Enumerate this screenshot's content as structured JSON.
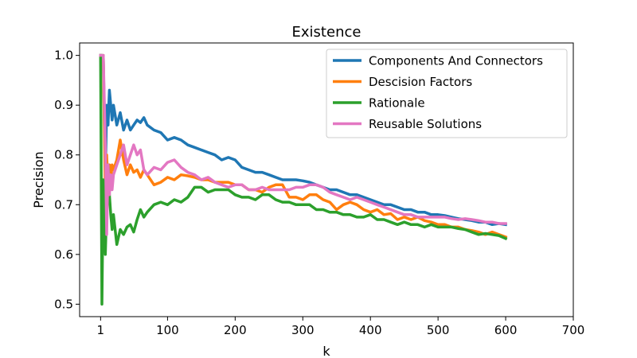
{
  "chart_data": {
    "type": "line",
    "title": "Existence",
    "xlabel": "k",
    "ylabel": "Precision",
    "xlim": [
      -30,
      700
    ],
    "ylim": [
      0.475,
      1.025
    ],
    "xticks": [
      1,
      100,
      200,
      300,
      400,
      500,
      600,
      700
    ],
    "xtick_labels": [
      "1",
      "100",
      "200",
      "300",
      "400",
      "500",
      "600",
      "700"
    ],
    "yticks": [
      0.5,
      0.6,
      0.7,
      0.8,
      0.9,
      1.0
    ],
    "ytick_labels": [
      "0.5",
      "0.6",
      "0.7",
      "0.8",
      "0.9",
      "1.0"
    ],
    "grid": false,
    "legend_position": "top-right",
    "series": [
      {
        "name": "Components And Connectors",
        "color": "#1f77b4",
        "x": [
          1,
          3,
          5,
          8,
          10,
          12,
          14,
          16,
          18,
          20,
          25,
          30,
          35,
          40,
          45,
          50,
          55,
          60,
          65,
          70,
          80,
          90,
          100,
          110,
          120,
          130,
          140,
          150,
          160,
          170,
          180,
          190,
          200,
          210,
          220,
          230,
          240,
          250,
          260,
          270,
          280,
          290,
          300,
          310,
          320,
          330,
          340,
          350,
          360,
          370,
          380,
          390,
          400,
          410,
          420,
          430,
          440,
          450,
          460,
          470,
          480,
          490,
          500,
          510,
          520,
          530,
          540,
          550,
          560,
          570,
          580,
          590,
          600
        ],
        "y": [
          1.0,
          1.0,
          1.0,
          0.76,
          0.9,
          0.86,
          0.93,
          0.9,
          0.87,
          0.9,
          0.86,
          0.885,
          0.85,
          0.87,
          0.85,
          0.86,
          0.87,
          0.865,
          0.875,
          0.86,
          0.85,
          0.845,
          0.83,
          0.835,
          0.83,
          0.82,
          0.815,
          0.81,
          0.805,
          0.8,
          0.79,
          0.795,
          0.79,
          0.775,
          0.77,
          0.765,
          0.765,
          0.76,
          0.755,
          0.75,
          0.75,
          0.75,
          0.748,
          0.745,
          0.74,
          0.735,
          0.73,
          0.73,
          0.725,
          0.72,
          0.72,
          0.715,
          0.71,
          0.705,
          0.7,
          0.7,
          0.695,
          0.69,
          0.69,
          0.685,
          0.685,
          0.68,
          0.68,
          0.678,
          0.675,
          0.672,
          0.67,
          0.668,
          0.665,
          0.665,
          0.66,
          0.662,
          0.66
        ]
      },
      {
        "name": "Descision Factors",
        "color": "#ff7f0e",
        "x": [
          1,
          3,
          5,
          8,
          10,
          12,
          14,
          16,
          18,
          20,
          25,
          30,
          35,
          40,
          45,
          50,
          55,
          60,
          65,
          70,
          80,
          90,
          100,
          110,
          120,
          130,
          140,
          150,
          160,
          170,
          180,
          190,
          200,
          210,
          220,
          230,
          240,
          250,
          260,
          270,
          280,
          290,
          300,
          310,
          320,
          330,
          340,
          350,
          360,
          370,
          380,
          390,
          400,
          410,
          420,
          430,
          440,
          450,
          460,
          470,
          480,
          490,
          500,
          510,
          520,
          530,
          540,
          550,
          560,
          570,
          580,
          590,
          600
        ],
        "y": [
          1.0,
          1.0,
          1.0,
          0.72,
          0.8,
          0.73,
          0.78,
          0.75,
          0.78,
          0.77,
          0.79,
          0.83,
          0.79,
          0.76,
          0.78,
          0.765,
          0.77,
          0.755,
          0.77,
          0.76,
          0.74,
          0.745,
          0.755,
          0.75,
          0.76,
          0.758,
          0.755,
          0.75,
          0.75,
          0.745,
          0.745,
          0.745,
          0.74,
          0.74,
          0.73,
          0.73,
          0.725,
          0.735,
          0.74,
          0.74,
          0.715,
          0.715,
          0.71,
          0.72,
          0.72,
          0.71,
          0.705,
          0.69,
          0.7,
          0.705,
          0.7,
          0.69,
          0.685,
          0.69,
          0.68,
          0.682,
          0.67,
          0.675,
          0.67,
          0.675,
          0.668,
          0.665,
          0.66,
          0.66,
          0.655,
          0.655,
          0.65,
          0.648,
          0.645,
          0.64,
          0.645,
          0.64,
          0.635
        ]
      },
      {
        "name": "Rationale",
        "color": "#2ca02c",
        "x": [
          1,
          3,
          5,
          8,
          10,
          12,
          14,
          16,
          18,
          20,
          25,
          30,
          35,
          40,
          45,
          50,
          55,
          60,
          65,
          70,
          80,
          90,
          100,
          110,
          120,
          130,
          140,
          150,
          160,
          170,
          180,
          190,
          200,
          210,
          220,
          230,
          240,
          250,
          260,
          270,
          280,
          290,
          300,
          310,
          320,
          330,
          340,
          350,
          360,
          370,
          380,
          390,
          400,
          410,
          420,
          430,
          440,
          450,
          460,
          470,
          480,
          490,
          500,
          510,
          520,
          530,
          540,
          550,
          560,
          570,
          580,
          590,
          600
        ],
        "y": [
          1.0,
          0.5,
          0.75,
          0.6,
          0.7,
          0.78,
          0.72,
          0.68,
          0.65,
          0.68,
          0.62,
          0.65,
          0.64,
          0.655,
          0.66,
          0.645,
          0.67,
          0.69,
          0.675,
          0.685,
          0.7,
          0.705,
          0.7,
          0.71,
          0.705,
          0.715,
          0.735,
          0.735,
          0.725,
          0.73,
          0.73,
          0.73,
          0.72,
          0.715,
          0.715,
          0.71,
          0.72,
          0.72,
          0.71,
          0.705,
          0.705,
          0.7,
          0.7,
          0.7,
          0.69,
          0.69,
          0.685,
          0.685,
          0.68,
          0.68,
          0.675,
          0.675,
          0.68,
          0.67,
          0.67,
          0.665,
          0.66,
          0.665,
          0.66,
          0.66,
          0.655,
          0.66,
          0.655,
          0.655,
          0.655,
          0.652,
          0.65,
          0.645,
          0.64,
          0.642,
          0.64,
          0.638,
          0.632
        ]
      },
      {
        "name": "Reusable Solutions",
        "color": "#e377c2",
        "x": [
          1,
          3,
          5,
          8,
          10,
          12,
          14,
          16,
          18,
          20,
          25,
          30,
          35,
          40,
          45,
          50,
          55,
          60,
          65,
          70,
          80,
          90,
          100,
          110,
          120,
          130,
          140,
          150,
          160,
          170,
          180,
          190,
          200,
          210,
          220,
          230,
          240,
          250,
          260,
          270,
          280,
          290,
          300,
          310,
          320,
          330,
          340,
          350,
          360,
          370,
          380,
          390,
          400,
          410,
          420,
          430,
          440,
          450,
          460,
          470,
          480,
          490,
          500,
          510,
          520,
          530,
          540,
          550,
          560,
          570,
          580,
          590,
          600
        ],
        "y": [
          1.0,
          1.0,
          1.0,
          0.82,
          0.64,
          0.78,
          0.72,
          0.76,
          0.73,
          0.76,
          0.78,
          0.8,
          0.82,
          0.78,
          0.8,
          0.82,
          0.8,
          0.81,
          0.77,
          0.76,
          0.775,
          0.77,
          0.785,
          0.79,
          0.775,
          0.765,
          0.76,
          0.75,
          0.755,
          0.745,
          0.74,
          0.735,
          0.74,
          0.74,
          0.73,
          0.73,
          0.735,
          0.73,
          0.73,
          0.73,
          0.73,
          0.735,
          0.735,
          0.74,
          0.74,
          0.735,
          0.725,
          0.72,
          0.715,
          0.71,
          0.715,
          0.71,
          0.705,
          0.7,
          0.695,
          0.69,
          0.685,
          0.68,
          0.68,
          0.675,
          0.675,
          0.675,
          0.675,
          0.675,
          0.672,
          0.67,
          0.672,
          0.67,
          0.668,
          0.665,
          0.665,
          0.662,
          0.662
        ]
      }
    ]
  }
}
